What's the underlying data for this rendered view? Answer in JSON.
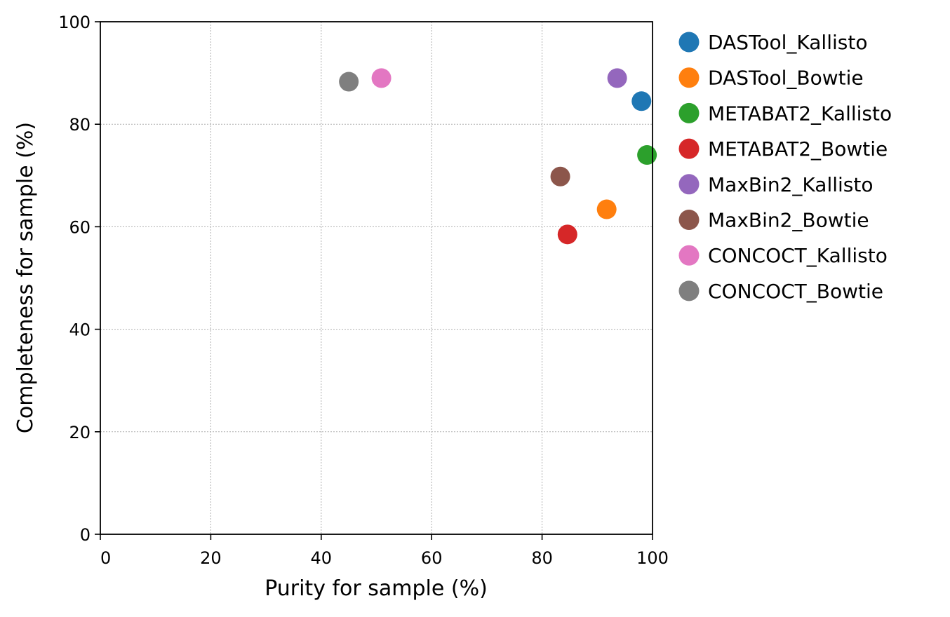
{
  "chart_data": {
    "type": "scatter",
    "xlabel": "Purity for sample (%)",
    "ylabel": "Completeness for sample (%)",
    "xlim": [
      0,
      100
    ],
    "ylim": [
      0,
      100
    ],
    "xticks": [
      0,
      20,
      40,
      60,
      80,
      100
    ],
    "yticks": [
      0,
      20,
      40,
      60,
      80,
      100
    ],
    "grid": true,
    "legend_position": "outside-right-top",
    "series": [
      {
        "name": "DASTool_Kallisto",
        "color": "#1f77b4",
        "x": [
          98.0
        ],
        "y": [
          84.5
        ]
      },
      {
        "name": "DASTool_Bowtie",
        "color": "#ff7f0e",
        "x": [
          91.7
        ],
        "y": [
          63.4
        ]
      },
      {
        "name": "METABAT2_Kallisto",
        "color": "#2ca02c",
        "x": [
          99.0
        ],
        "y": [
          74.0
        ]
      },
      {
        "name": "METABAT2_Bowtie",
        "color": "#d62728",
        "x": [
          84.6
        ],
        "y": [
          58.5
        ]
      },
      {
        "name": "MaxBin2_Kallisto",
        "color": "#9467bd",
        "x": [
          93.6
        ],
        "y": [
          89.0
        ]
      },
      {
        "name": "MaxBin2_Bowtie",
        "color": "#8c564b",
        "x": [
          83.3
        ],
        "y": [
          69.8
        ]
      },
      {
        "name": "CONCOCT_Kallisto",
        "color": "#e377c2",
        "x": [
          50.9
        ],
        "y": [
          89.0
        ]
      },
      {
        "name": "CONCOCT_Bowtie",
        "color": "#7f7f7f",
        "x": [
          45.0
        ],
        "y": [
          88.3
        ]
      }
    ]
  }
}
